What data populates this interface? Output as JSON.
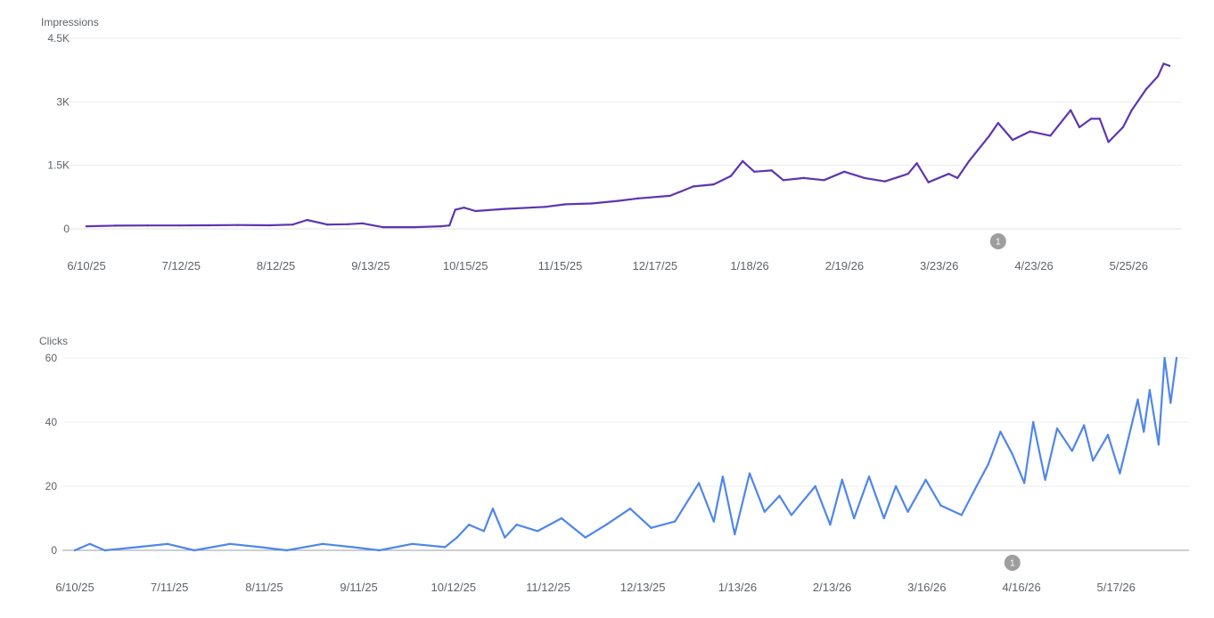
{
  "chart_data": [
    {
      "type": "line",
      "ylabel": "Impressions",
      "ylim": [
        0,
        4500
      ],
      "y_ticks": [
        "0",
        "1.5K",
        "3K",
        "4.5K"
      ],
      "y_tick_values": [
        0,
        1500,
        3000,
        4500
      ],
      "x_tick_labels": [
        "6/10/25",
        "7/12/25",
        "8/12/25",
        "9/13/25",
        "10/15/25",
        "11/15/25",
        "12/17/25",
        "1/18/26",
        "2/19/26",
        "3/23/26",
        "4/23/26",
        "5/25/26"
      ],
      "x_range": [
        "6/10/25",
        "6/18/26"
      ],
      "color": "#5e35b1",
      "annotation": {
        "label": "1",
        "date": "4/20/26"
      },
      "series": [
        {
          "points": [
            [
              "6/10/25",
              60
            ],
            [
              "6/20/25",
              75
            ],
            [
              "7/1/25",
              80
            ],
            [
              "7/12/25",
              80
            ],
            [
              "7/22/25",
              85
            ],
            [
              "8/1/25",
              90
            ],
            [
              "8/12/25",
              85
            ],
            [
              "8/20/25",
              100
            ],
            [
              "8/25/25",
              210
            ],
            [
              "9/1/25",
              100
            ],
            [
              "9/8/25",
              110
            ],
            [
              "9/13/25",
              130
            ],
            [
              "9/20/25",
              40
            ],
            [
              "10/1/25",
              40
            ],
            [
              "10/10/25",
              60
            ],
            [
              "10/13/25",
              80
            ],
            [
              "10/15/25",
              450
            ],
            [
              "10/18/25",
              500
            ],
            [
              "10/22/25",
              420
            ],
            [
              "11/1/25",
              470
            ],
            [
              "11/15/25",
              520
            ],
            [
              "11/22/25",
              580
            ],
            [
              "12/1/25",
              600
            ],
            [
              "12/10/25",
              660
            ],
            [
              "12/17/25",
              720
            ],
            [
              "12/28/25",
              780
            ],
            [
              "1/5/26",
              1000
            ],
            [
              "1/12/26",
              1050
            ],
            [
              "1/18/26",
              1250
            ],
            [
              "1/22/26",
              1600
            ],
            [
              "1/26/26",
              1350
            ],
            [
              "2/1/26",
              1380
            ],
            [
              "2/5/26",
              1150
            ],
            [
              "2/12/26",
              1200
            ],
            [
              "2/19/26",
              1150
            ],
            [
              "2/26/26",
              1350
            ],
            [
              "3/5/26",
              1200
            ],
            [
              "3/12/26",
              1120
            ],
            [
              "3/20/26",
              1300
            ],
            [
              "3/23/26",
              1550
            ],
            [
              "3/27/26",
              1100
            ],
            [
              "4/3/26",
              1300
            ],
            [
              "4/6/26",
              1200
            ],
            [
              "4/10/26",
              1600
            ],
            [
              "4/17/26",
              2200
            ],
            [
              "4/20/26",
              2500
            ],
            [
              "4/25/26",
              2100
            ],
            [
              "5/1/26",
              2300
            ],
            [
              "5/8/26",
              2200
            ],
            [
              "5/15/26",
              2800
            ],
            [
              "5/18/26",
              2400
            ],
            [
              "5/22/26",
              2600
            ],
            [
              "5/25/26",
              2600
            ],
            [
              "5/28/26",
              2050
            ],
            [
              "6/2/26",
              2400
            ],
            [
              "6/5/26",
              2800
            ],
            [
              "6/10/26",
              3300
            ],
            [
              "6/14/26",
              3600
            ],
            [
              "6/16/26",
              3900
            ],
            [
              "6/18/26",
              3850
            ]
          ]
        }
      ]
    },
    {
      "type": "line",
      "ylabel": "Clicks",
      "ylim": [
        0,
        60
      ],
      "y_ticks": [
        "0",
        "20",
        "40",
        "60"
      ],
      "y_tick_values": [
        0,
        20,
        40,
        60
      ],
      "x_tick_labels": [
        "6/10/25",
        "7/11/25",
        "8/11/25",
        "9/11/25",
        "10/12/25",
        "11/12/25",
        "12/13/25",
        "1/13/26",
        "2/13/26",
        "3/16/26",
        "4/16/26",
        "5/17/26"
      ],
      "x_range": [
        "6/10/25",
        "6/14/26"
      ],
      "color": "#4f86ec",
      "annotation": {
        "label": "1",
        "date": "4/20/26"
      },
      "series": [
        {
          "points": [
            [
              "6/10/25",
              0
            ],
            [
              "6/15/25",
              2
            ],
            [
              "6/20/25",
              0
            ],
            [
              "7/1/25",
              1
            ],
            [
              "7/11/25",
              2
            ],
            [
              "7/20/25",
              0
            ],
            [
              "8/1/25",
              2
            ],
            [
              "8/11/25",
              1
            ],
            [
              "8/20/25",
              0
            ],
            [
              "9/1/25",
              2
            ],
            [
              "9/11/25",
              1
            ],
            [
              "9/20/25",
              0
            ],
            [
              "10/1/25",
              2
            ],
            [
              "10/12/25",
              1
            ],
            [
              "10/16/25",
              4
            ],
            [
              "10/20/25",
              8
            ],
            [
              "10/25/25",
              6
            ],
            [
              "10/28/25",
              13
            ],
            [
              "11/1/25",
              4
            ],
            [
              "11/5/25",
              8
            ],
            [
              "11/12/25",
              6
            ],
            [
              "11/20/25",
              10
            ],
            [
              "11/28/25",
              4
            ],
            [
              "12/5/25",
              8
            ],
            [
              "12/13/25",
              13
            ],
            [
              "12/20/25",
              7
            ],
            [
              "12/28/25",
              9
            ],
            [
              "1/5/26",
              21
            ],
            [
              "1/10/26",
              9
            ],
            [
              "1/13/26",
              23
            ],
            [
              "1/17/26",
              5
            ],
            [
              "1/22/26",
              24
            ],
            [
              "1/27/26",
              12
            ],
            [
              "2/1/26",
              17
            ],
            [
              "2/5/26",
              11
            ],
            [
              "2/13/26",
              20
            ],
            [
              "2/18/26",
              8
            ],
            [
              "2/22/26",
              22
            ],
            [
              "2/26/26",
              10
            ],
            [
              "3/3/26",
              23
            ],
            [
              "3/8/26",
              10
            ],
            [
              "3/12/26",
              20
            ],
            [
              "3/16/26",
              12
            ],
            [
              "3/22/26",
              22
            ],
            [
              "3/27/26",
              14
            ],
            [
              "4/3/26",
              11
            ],
            [
              "4/8/26",
              20
            ],
            [
              "4/12/26",
              27
            ],
            [
              "4/16/26",
              37
            ],
            [
              "4/20/26",
              30
            ],
            [
              "4/24/26",
              21
            ],
            [
              "4/27/26",
              40
            ],
            [
              "5/1/26",
              22
            ],
            [
              "5/5/26",
              38
            ],
            [
              "5/10/26",
              31
            ],
            [
              "5/14/26",
              39
            ],
            [
              "5/17/26",
              28
            ],
            [
              "5/22/26",
              36
            ],
            [
              "5/26/26",
              24
            ],
            [
              "6/1/26",
              47
            ],
            [
              "6/3/26",
              37
            ],
            [
              "6/5/26",
              50
            ],
            [
              "6/8/26",
              33
            ],
            [
              "6/10/26",
              60
            ],
            [
              "6/12/26",
              46
            ],
            [
              "6/14/26",
              60
            ]
          ]
        }
      ]
    }
  ]
}
